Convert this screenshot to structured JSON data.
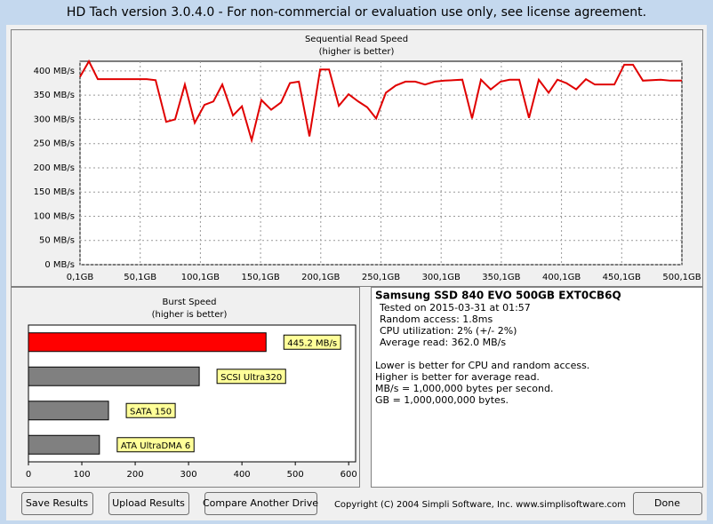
{
  "window": {
    "title": "HD Tach version 3.0.4.0  - For non-commercial or evaluation use only, see license agreement."
  },
  "chart_data": [
    {
      "type": "line",
      "title": "Sequential Read Speed",
      "subtitle": "(higher is better)",
      "color": "#e00000",
      "grid": true,
      "x": [
        0.1,
        7.5,
        14.9,
        55.5,
        62.9,
        71.7,
        79.1,
        87.2,
        95.4,
        103.5,
        110.9,
        118.3,
        127.2,
        134.6,
        142.7,
        150.8,
        158.9,
        167.1,
        174.5,
        181.9,
        190.7,
        199.6,
        207.0,
        215.1,
        223.2,
        231.3,
        238.7,
        246.1,
        254.2,
        262.4,
        270.5,
        278.6,
        286.7,
        294.9,
        303.0,
        317.7,
        325.8,
        333.2,
        341.3,
        349.5,
        356.9,
        365.0,
        373.1,
        381.2,
        389.4,
        396.7,
        404.1,
        412.3,
        420.4,
        427.8,
        435.9,
        444.0,
        452.2,
        459.5,
        467.7,
        482.4,
        490.6,
        500.1
      ],
      "values": [
        388,
        420,
        383,
        383,
        381,
        295,
        300,
        372,
        293,
        330,
        337,
        372,
        308,
        327,
        257,
        340,
        320,
        335,
        375,
        378,
        265,
        403,
        403,
        328,
        352,
        337,
        325,
        302,
        355,
        370,
        378,
        378,
        372,
        378,
        380,
        382,
        302,
        382,
        362,
        378,
        382,
        382,
        303,
        382,
        355,
        382,
        375,
        362,
        383,
        372,
        372,
        372,
        413,
        413,
        380,
        382,
        380,
        380
      ],
      "xlim": [
        0.1,
        500.1
      ],
      "xticks": [
        {
          "value": 0.1,
          "label": "0,1GB"
        },
        {
          "value": 50.1,
          "label": "50,1GB"
        },
        {
          "value": 100.1,
          "label": "100,1GB"
        },
        {
          "value": 150.1,
          "label": "150,1GB"
        },
        {
          "value": 200.1,
          "label": "200,1GB"
        },
        {
          "value": 250.1,
          "label": "250,1GB"
        },
        {
          "value": 300.1,
          "label": "300,1GB"
        },
        {
          "value": 350.1,
          "label": "350,1GB"
        },
        {
          "value": 400.1,
          "label": "400,1GB"
        },
        {
          "value": 450.1,
          "label": "450,1GB"
        },
        {
          "value": 500.1,
          "label": "500,1GB"
        }
      ],
      "ylim": [
        0,
        420
      ],
      "yticks": [
        {
          "value": 0,
          "label": "0 MB/s"
        },
        {
          "value": 50,
          "label": "50 MB/s"
        },
        {
          "value": 100,
          "label": "100 MB/s"
        },
        {
          "value": 150,
          "label": "150 MB/s"
        },
        {
          "value": 200,
          "label": "200 MB/s"
        },
        {
          "value": 250,
          "label": "250 MB/s"
        },
        {
          "value": 300,
          "label": "300 MB/s"
        },
        {
          "value": 350,
          "label": "350 MB/s"
        },
        {
          "value": 400,
          "label": "400 MB/s"
        }
      ]
    },
    {
      "type": "hbar",
      "title": "Burst Speed",
      "subtitle": "(higher is better)",
      "categories": [
        null,
        "SCSI Ultra320",
        "SATA 150",
        "ATA UltraDMA 6"
      ],
      "values": [
        445.2,
        320,
        150,
        133
      ],
      "value_labels": [
        "445.2 MB/s",
        null,
        null,
        null
      ],
      "colors": [
        "#ff0000",
        "#808080",
        "#808080",
        "#808080"
      ],
      "xlim": [
        0,
        613
      ],
      "xticks": [
        0,
        100,
        200,
        300,
        400,
        500,
        600
      ]
    }
  ],
  "info": {
    "drive": "Samsung SSD 840 EVO 500GB EXT0CB6Q",
    "lines": [
      "Tested on 2015-03-31 at 01:57",
      "Random access: 1.8ms",
      "CPU utilization: 2% (+/- 2%)",
      "Average read: 362.0 MB/s"
    ],
    "notes": [
      "Lower is better for CPU and random access.",
      "Higher is better for average read.",
      "MB/s = 1,000,000 bytes per second.",
      "GB = 1,000,000,000 bytes."
    ]
  },
  "buttons": [
    "Save Results",
    "Upload Results",
    "Compare Another Drive",
    "Done"
  ],
  "copyright": "Copyright (C) 2004 Simpli Software, Inc. www.simplisoftware.com"
}
